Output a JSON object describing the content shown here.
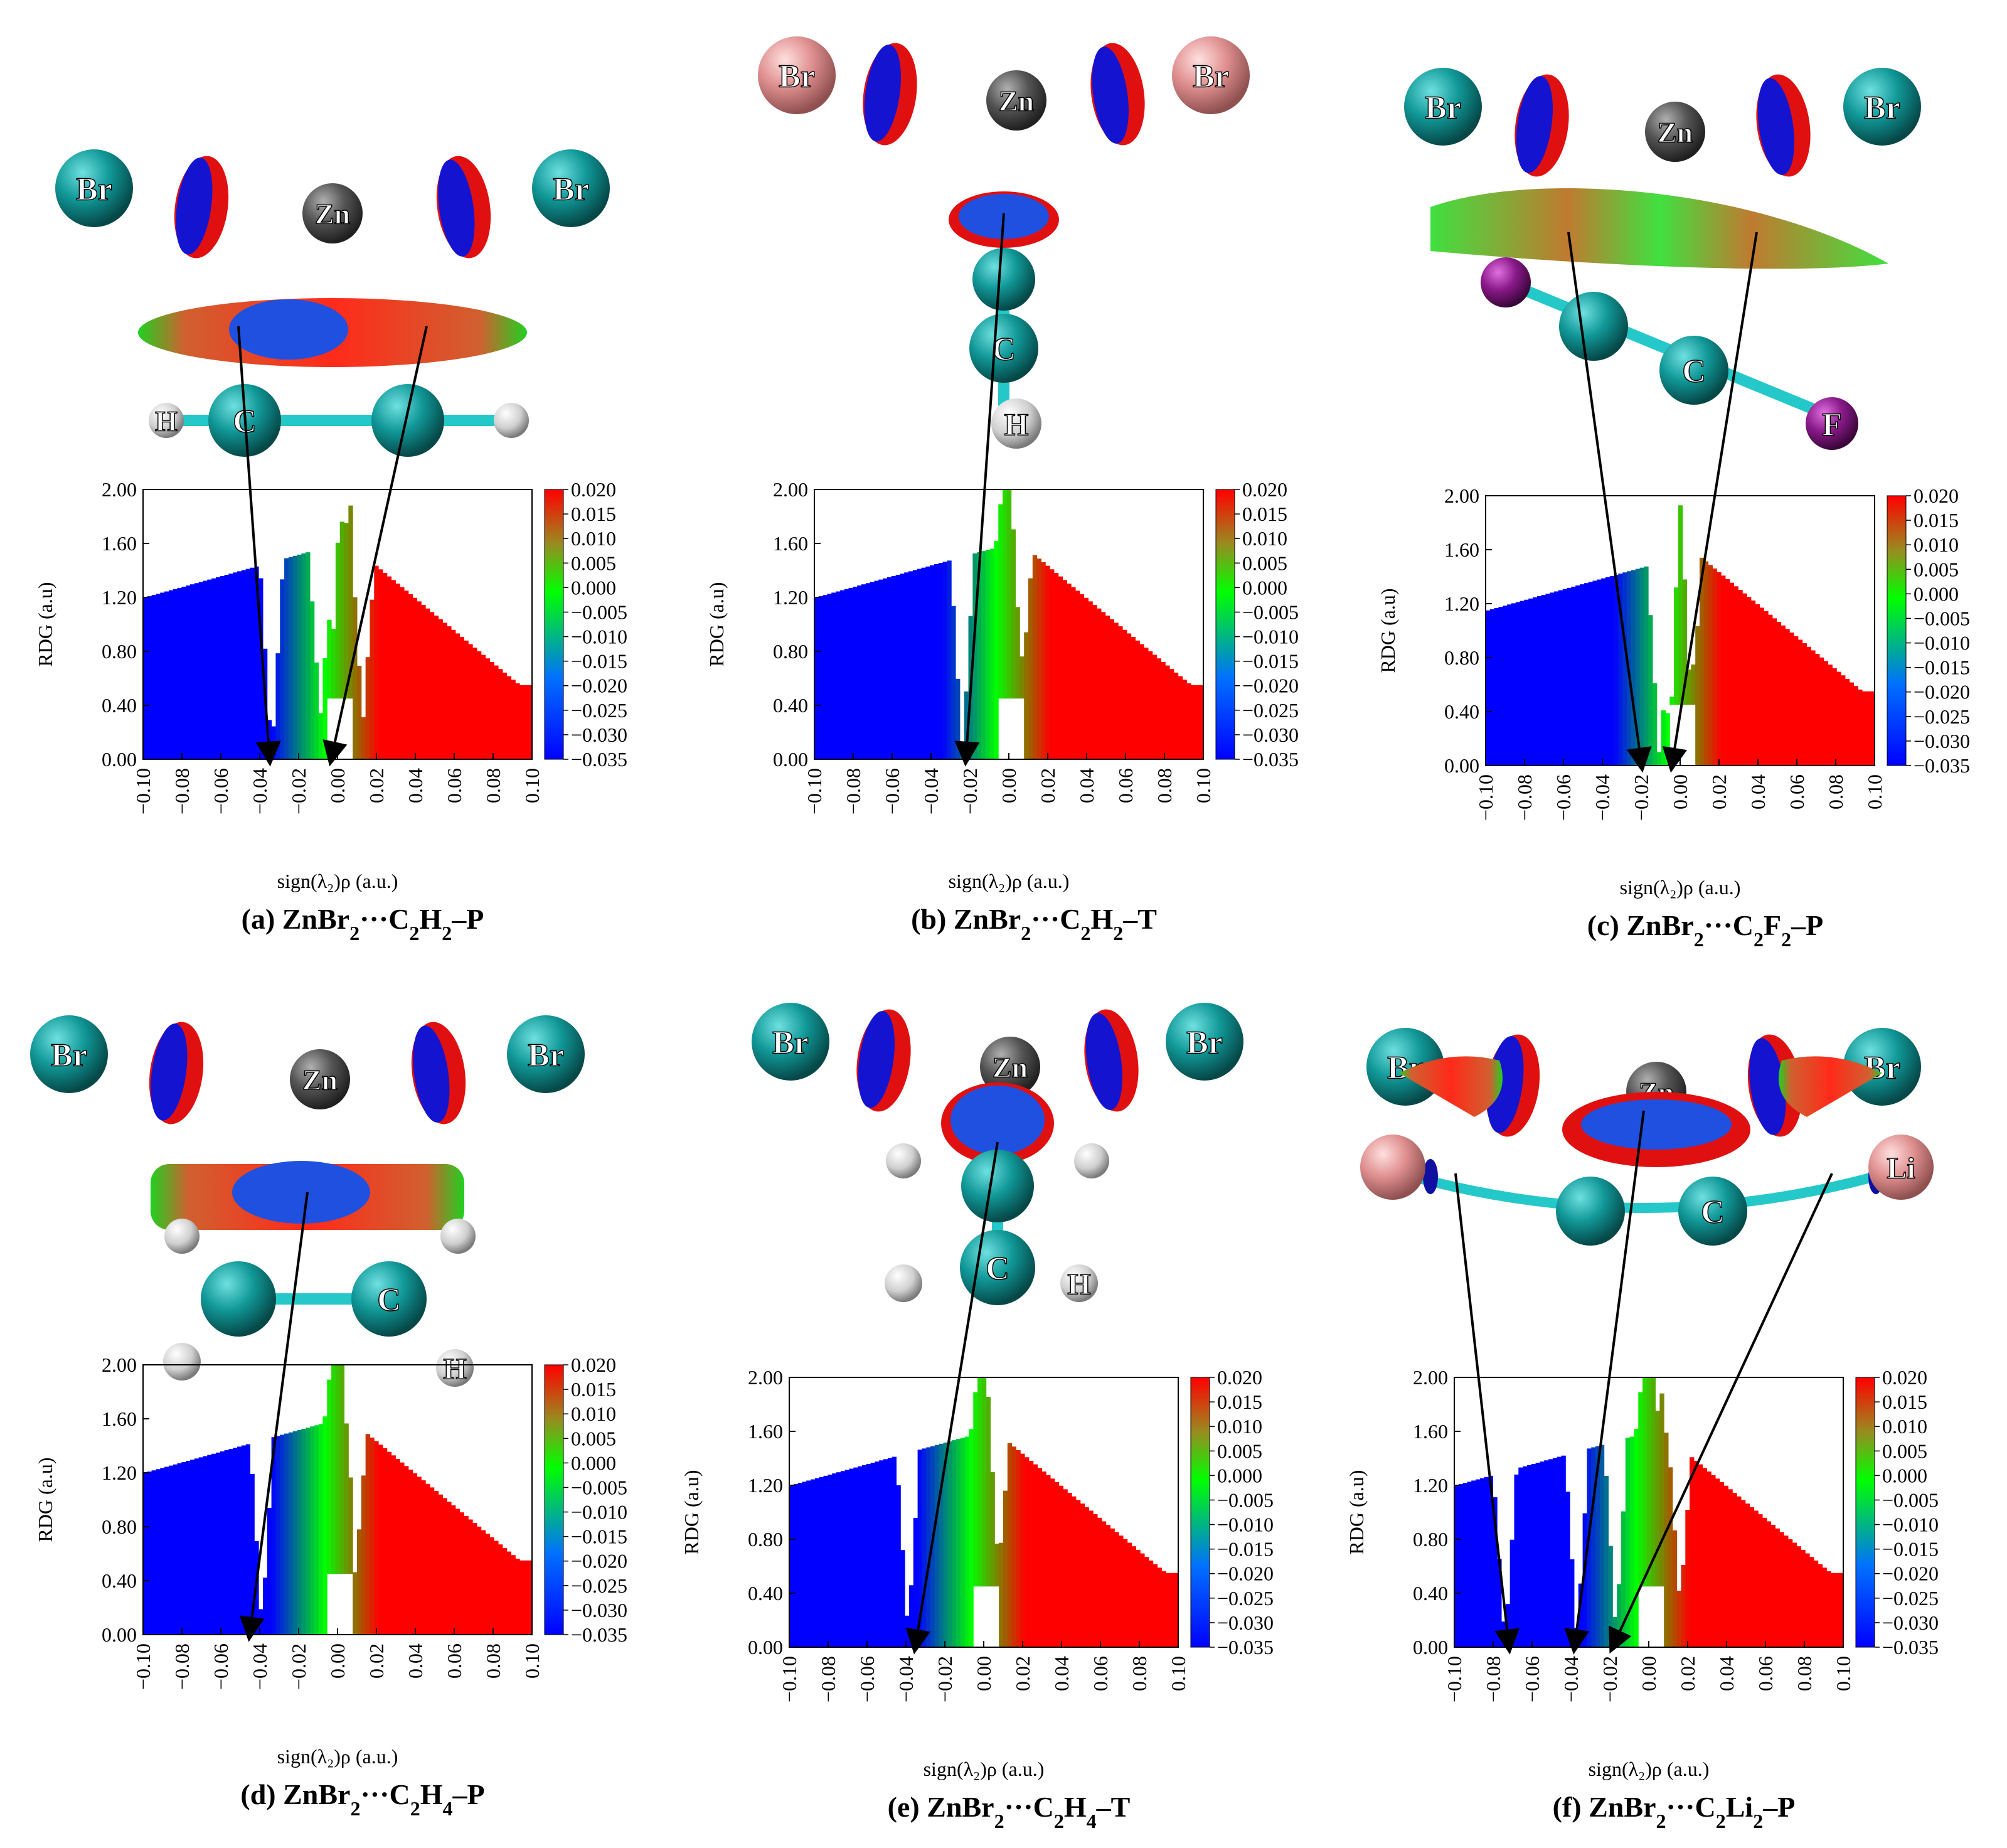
{
  "figure": {
    "axis": {
      "xlabel": "sign(λ₂)ρ (a.u.)",
      "ylabel": "RDG (a.u)",
      "xlim": [
        -0.1,
        0.1
      ],
      "ylim": [
        0.0,
        2.0
      ],
      "xticks": [
        "−0.10",
        "−0.08",
        "−0.06",
        "−0.04",
        "−0.02",
        "0.00",
        "0.02",
        "0.04",
        "0.06",
        "0.08",
        "0.10"
      ],
      "yticks": [
        "0.00",
        "0.40",
        "0.80",
        "1.20",
        "1.60",
        "2.00"
      ]
    },
    "colorbar": {
      "range": [
        -0.035,
        0.02
      ],
      "ticks": [
        "0.020",
        "0.015",
        "0.010",
        "0.005",
        "0.000",
        "−0.005",
        "−0.010",
        "−0.015",
        "−0.020",
        "−0.025",
        "−0.030",
        "−0.035"
      ],
      "colors": [
        "#0000ff",
        "#00ff00",
        "#ff0000"
      ]
    },
    "atom_colors": {
      "Br": "#0f8f8f",
      "Br_pink": "#e8a0a0",
      "Zn": "#555555",
      "C": "#0f8f8f",
      "H": "#dddddd",
      "F": "#8b1a8b",
      "Li": "#e8a0a0"
    },
    "panels": [
      {
        "id": "a",
        "caption": {
          "prefix": "(a) ZnBr",
          "s1": "2",
          "mid": "···C",
          "s2": "2",
          "mol": "H",
          "s3": "2",
          "suffix": "–P"
        },
        "labels": {
          "left": "Br",
          "right": "Br",
          "metal": "Zn",
          "c": "C",
          "h": "H"
        },
        "arrow_targets_x": [
          -0.035,
          -0.003
        ]
      },
      {
        "id": "b",
        "caption": {
          "prefix": "(b) ZnBr",
          "s1": "2",
          "mid": "···C",
          "s2": "2",
          "mol": "H",
          "s3": "2",
          "suffix": "–T"
        },
        "labels": {
          "left": "Br",
          "right": "Br",
          "metal": "Zn",
          "c": "C",
          "h": "H"
        },
        "arrow_targets_x": [
          -0.022
        ]
      },
      {
        "id": "c",
        "caption": {
          "prefix": "(c) ZnBr",
          "s1": "2",
          "mid": "···C",
          "s2": "2",
          "mol": "F",
          "s3": "2",
          "suffix": "–P"
        },
        "labels": {
          "left": "Br",
          "right": "Br",
          "metal": "Zn",
          "c": "C",
          "f": "F"
        },
        "arrow_targets_x": [
          -0.02,
          -0.004
        ]
      },
      {
        "id": "d",
        "caption": {
          "prefix": "(d) ZnBr",
          "s1": "2",
          "mid": "···C",
          "s2": "2",
          "mol": "H",
          "s3": "4",
          "suffix": "–P"
        },
        "labels": {
          "left": "Br",
          "right": "Br",
          "metal": "Zn",
          "c": "C",
          "h": "H"
        },
        "arrow_targets_x": [
          -0.045
        ]
      },
      {
        "id": "e",
        "caption": {
          "prefix": "(e) ZnBr",
          "s1": "2",
          "mid": "···C",
          "s2": "2",
          "mol": "H",
          "s3": "4",
          "suffix": "–T"
        },
        "labels": {
          "left": "Br",
          "right": "Br",
          "metal": "Zn",
          "c": "C",
          "h": "H"
        },
        "arrow_targets_x": [
          -0.035
        ]
      },
      {
        "id": "f",
        "caption": {
          "prefix": "(f) ZnBr",
          "s1": "2",
          "mid": "···C",
          "s2": "2",
          "mol": "Li",
          "s3": "2",
          "suffix": "–P"
        },
        "labels": {
          "left": "Br",
          "right": "Br",
          "metal": "Zn",
          "c": "C",
          "li": "Li"
        },
        "arrow_targets_x": [
          -0.072,
          -0.038,
          -0.018
        ]
      }
    ]
  },
  "chart_data": [
    {
      "type": "scatter",
      "panel": "a",
      "title": "(a) ZnBr2···C2H2–P",
      "xlabel": "sign(λ2)ρ (a.u.)",
      "ylabel": "RDG (a.u)",
      "xlim": [
        -0.1,
        0.1
      ],
      "ylim": [
        0,
        2.0
      ],
      "spikes": [
        {
          "x": -0.035,
          "min_rdg": 0.0,
          "color": "blue"
        },
        {
          "x": -0.01,
          "min_rdg": 0.3,
          "color": "green"
        },
        {
          "x": -0.003,
          "min_rdg": 0.35,
          "color": "green"
        },
        {
          "x": 0.012,
          "min_rdg": 0.27,
          "color": "red"
        }
      ],
      "baseline_rdg_left": 1.2
    },
    {
      "type": "scatter",
      "panel": "b",
      "title": "(b) ZnBr2···C2H2–T",
      "xlabel": "sign(λ2)ρ (a.u.)",
      "ylabel": "RDG (a.u)",
      "xlim": [
        -0.1,
        0.1
      ],
      "ylim": [
        0,
        2.0
      ],
      "spikes": [
        {
          "x": -0.025,
          "min_rdg": 0.0,
          "color": "blue"
        },
        {
          "x": 0.005,
          "min_rdg": 0.35,
          "color": "olive"
        }
      ],
      "baseline_rdg_left": 1.2
    },
    {
      "type": "scatter",
      "panel": "c",
      "title": "(c) ZnBr2···C2F2–P",
      "xlabel": "sign(λ2)ρ (a.u.)",
      "ylabel": "RDG (a.u)",
      "xlim": [
        -0.1,
        0.1
      ],
      "ylim": [
        0,
        2.0
      ],
      "spikes": [
        {
          "x": -0.012,
          "min_rdg": 0.1,
          "color": "green"
        },
        {
          "x": -0.006,
          "min_rdg": 0.05,
          "color": "green"
        },
        {
          "x": 0.004,
          "min_rdg": 0.05,
          "color": "olive"
        }
      ],
      "baseline_rdg_left": 1.15
    },
    {
      "type": "scatter",
      "panel": "d",
      "title": "(d) ZnBr2···C2H4–P",
      "xlabel": "sign(λ2)ρ (a.u.)",
      "ylabel": "RDG (a.u)",
      "xlim": [
        -0.1,
        0.1
      ],
      "ylim": [
        0,
        2.0
      ],
      "spikes": [
        {
          "x": -0.04,
          "min_rdg": 0.05,
          "color": "blue"
        },
        {
          "x": 0.008,
          "min_rdg": 0.4,
          "color": "olive"
        }
      ],
      "baseline_rdg_left": 1.2
    },
    {
      "type": "scatter",
      "panel": "e",
      "title": "(e) ZnBr2···C2H4–T",
      "xlabel": "sign(λ2)ρ (a.u.)",
      "ylabel": "RDG (a.u)",
      "xlim": [
        -0.1,
        0.1
      ],
      "ylim": [
        0,
        2.0
      ],
      "spikes": [
        {
          "x": -0.04,
          "min_rdg": 0.1,
          "color": "blue"
        },
        {
          "x": 0.006,
          "min_rdg": 0.4,
          "color": "olive"
        }
      ],
      "baseline_rdg_left": 1.2
    },
    {
      "type": "scatter",
      "panel": "f",
      "title": "(f) ZnBr2···C2Li2–P",
      "xlabel": "sign(λ2)ρ (a.u.)",
      "ylabel": "RDG (a.u)",
      "xlim": [
        -0.1,
        0.1
      ],
      "ylim": [
        0,
        2.0
      ],
      "spikes": [
        {
          "x": -0.075,
          "min_rdg": 0.02,
          "color": "blue"
        },
        {
          "x": -0.038,
          "min_rdg": 0.05,
          "color": "blue"
        },
        {
          "x": -0.018,
          "min_rdg": 0.08,
          "color": "green"
        },
        {
          "x": 0.015,
          "min_rdg": 0.3,
          "color": "red"
        }
      ],
      "baseline_rdg_left": 1.2
    }
  ]
}
